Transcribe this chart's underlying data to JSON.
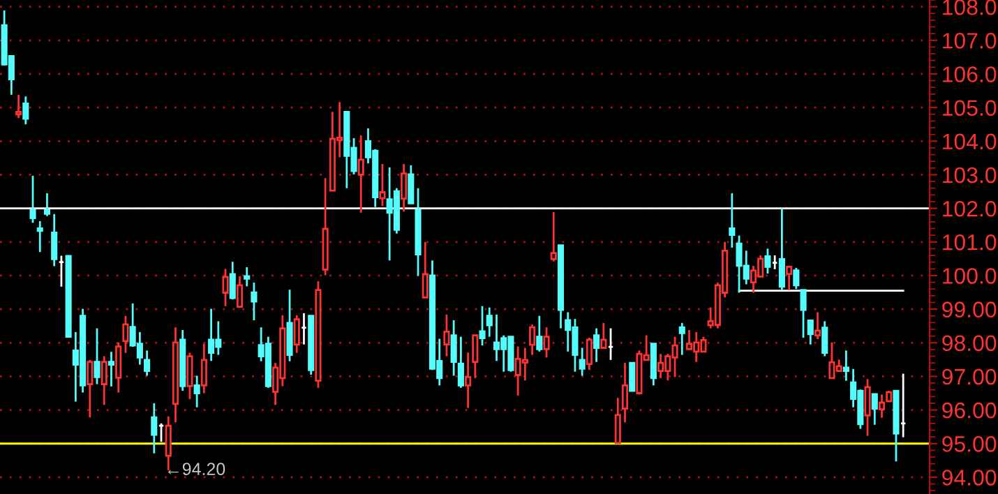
{
  "chart_data": {
    "type": "candlestick",
    "categories": [
      null,
      null,
      null,
      null,
      null,
      null,
      null,
      null,
      null,
      null,
      null,
      null,
      null,
      null,
      null,
      null,
      null,
      null,
      null,
      null,
      null,
      null,
      null,
      null,
      null,
      null,
      null,
      null,
      null,
      null,
      null,
      null,
      null,
      null,
      null,
      null,
      null,
      null,
      null,
      null,
      null,
      null,
      null,
      null,
      null,
      null,
      null,
      null,
      null,
      null,
      null,
      null,
      null,
      null,
      null,
      null,
      null,
      null,
      null,
      null,
      null,
      null,
      null,
      null,
      null,
      null,
      null,
      null,
      null,
      null,
      null,
      null,
      null,
      null,
      null,
      null,
      null,
      null,
      null,
      null,
      null,
      null,
      null,
      null,
      null,
      null,
      null,
      null,
      null,
      null,
      null,
      null,
      null,
      null,
      null,
      null,
      null,
      null,
      null,
      null,
      null,
      null,
      null,
      null,
      null,
      null,
      null,
      null,
      null,
      null,
      null,
      null,
      null,
      null,
      null,
      null,
      null,
      null,
      null,
      null,
      null,
      null,
      null,
      null,
      null,
      null,
      null
    ],
    "ohlc": [
      [
        107.45,
        107.89,
        106.25,
        106.28
      ],
      [
        106.53,
        106.53,
        105.38,
        105.84
      ],
      [
        104.8,
        105.38,
        104.69,
        104.87
      ],
      [
        105.12,
        105.33,
        104.5,
        104.67
      ],
      [
        101.94,
        102.97,
        101.57,
        101.71
      ],
      [
        101.4,
        101.62,
        100.7,
        101.33
      ],
      [
        101.94,
        102.45,
        101.77,
        101.84
      ],
      [
        101.28,
        101.83,
        100.28,
        100.49
      ],
      [
        100.4,
        100.59,
        99.67,
        100.4
      ],
      [
        100.58,
        100.58,
        98.15,
        98.18
      ],
      [
        97.77,
        98.32,
        96.25,
        97.35
      ],
      [
        98.8,
        99.01,
        96.52,
        96.73
      ],
      [
        96.77,
        97.49,
        95.78,
        97.43
      ],
      [
        97.43,
        98.43,
        96.77,
        96.98
      ],
      [
        96.77,
        97.6,
        96.15,
        97.43
      ],
      [
        97.43,
        97.73,
        96.7,
        97.35
      ],
      [
        96.96,
        98.01,
        96.52,
        97.89
      ],
      [
        98.05,
        98.8,
        97.7,
        98.55
      ],
      [
        98.47,
        99.17,
        97.88,
        97.92
      ],
      [
        97.97,
        98.32,
        97.35,
        97.56
      ],
      [
        97.49,
        97.77,
        97.02,
        97.16
      ],
      [
        95.78,
        96.2,
        94.71,
        95.26
      ],
      [
        95.53,
        95.6,
        95.05,
        95.53
      ],
      [
        94.64,
        95.81,
        94.2,
        95.53
      ],
      [
        96.18,
        98.46,
        95.63,
        98.01
      ],
      [
        98.09,
        98.38,
        96.57,
        96.71
      ],
      [
        96.71,
        97.7,
        96.32,
        97.6
      ],
      [
        96.73,
        97.02,
        96.08,
        96.5
      ],
      [
        96.73,
        97.97,
        96.5,
        97.49
      ],
      [
        98.09,
        99.01,
        97.46,
        97.7
      ],
      [
        98.09,
        98.64,
        97.64,
        97.88
      ],
      [
        99.49,
        100.2,
        99.09,
        99.96
      ],
      [
        100.04,
        100.41,
        99.29,
        99.33
      ],
      [
        99.07,
        99.98,
        99.07,
        99.71
      ],
      [
        99.98,
        100.25,
        99.68,
        99.91
      ],
      [
        99.5,
        99.79,
        98.67,
        99.23
      ],
      [
        97.93,
        98.46,
        97.45,
        97.6
      ],
      [
        97.97,
        98.18,
        96.66,
        96.71
      ],
      [
        96.54,
        97.4,
        96.15,
        97.26
      ],
      [
        96.95,
        98.82,
        96.71,
        98.43
      ],
      [
        98.59,
        99.58,
        97.45,
        97.64
      ],
      [
        97.95,
        98.82,
        97.7,
        98.7
      ],
      [
        98.45,
        98.88,
        97.95,
        98.45
      ],
      [
        98.8,
        98.8,
        97.05,
        97.19
      ],
      [
        96.87,
        99.83,
        96.66,
        99.57
      ],
      [
        100.18,
        102.9,
        100.01,
        101.39
      ],
      [
        102.53,
        104.87,
        102.53,
        104.07
      ],
      [
        104.03,
        105.16,
        103.52,
        104.1
      ],
      [
        104.87,
        104.87,
        102.6,
        103.56
      ],
      [
        103.8,
        104.09,
        103.01,
        103.11
      ],
      [
        103.0,
        104.17,
        101.87,
        103.45
      ],
      [
        104.0,
        104.38,
        103.34,
        103.52
      ],
      [
        103.71,
        103.76,
        102.04,
        102.33
      ],
      [
        102.3,
        103.32,
        102.07,
        102.48
      ],
      [
        102.27,
        103.22,
        100.45,
        101.87
      ],
      [
        102.51,
        102.6,
        101.25,
        101.36
      ],
      [
        102.29,
        103.32,
        101.91,
        103.04
      ],
      [
        103.01,
        103.28,
        102.15,
        102.15
      ],
      [
        101.94,
        102.6,
        99.99,
        100.63
      ],
      [
        99.35,
        101.0,
        99.35,
        100.04
      ],
      [
        100.0,
        100.45,
        97.19,
        97.23
      ],
      [
        97.46,
        98.12,
        96.73,
        96.95
      ],
      [
        97.95,
        98.84,
        97.6,
        98.33
      ],
      [
        98.22,
        98.67,
        97.02,
        97.43
      ],
      [
        97.38,
        98.18,
        96.66,
        96.73
      ],
      [
        96.73,
        97.71,
        96.06,
        96.98
      ],
      [
        97.43,
        98.22,
        96.95,
        98.22
      ],
      [
        98.34,
        99.09,
        97.92,
        98.14
      ],
      [
        98.8,
        99.05,
        98.18,
        98.52
      ],
      [
        98.01,
        98.84,
        97.46,
        97.81
      ],
      [
        98.14,
        98.22,
        97.14,
        97.81
      ],
      [
        98.18,
        98.18,
        97.14,
        97.19
      ],
      [
        97.04,
        97.89,
        96.43,
        97.52
      ],
      [
        97.41,
        97.85,
        96.88,
        97.49
      ],
      [
        97.94,
        98.54,
        97.64,
        98.46
      ],
      [
        98.18,
        98.8,
        97.74,
        97.81
      ],
      [
        97.81,
        98.46,
        97.56,
        98.18
      ],
      [
        100.49,
        101.89,
        100.42,
        100.67
      ],
      [
        100.9,
        100.9,
        98.43,
        98.98
      ],
      [
        98.67,
        98.91,
        97.74,
        98.38
      ],
      [
        98.46,
        98.71,
        97.14,
        97.64
      ],
      [
        97.49,
        97.85,
        97.02,
        97.23
      ],
      [
        97.37,
        98.15,
        97.19,
        98.09
      ],
      [
        98.22,
        98.43,
        97.43,
        97.85
      ],
      [
        97.85,
        98.59,
        97.85,
        98.09
      ],
      [
        97.88,
        98.43,
        97.49,
        97.88
      ],
      [
        95.02,
        96.36,
        95.02,
        95.85
      ],
      [
        96.04,
        97.4,
        95.63,
        96.73
      ],
      [
        97.4,
        97.4,
        96.57,
        96.57
      ],
      [
        96.5,
        97.77,
        96.46,
        97.67
      ],
      [
        97.49,
        98.22,
        97.49,
        97.63
      ],
      [
        97.97,
        97.97,
        96.73,
        96.95
      ],
      [
        97.16,
        97.67,
        96.95,
        97.4
      ],
      [
        97.16,
        97.67,
        96.88,
        97.6
      ],
      [
        97.56,
        98.18,
        96.98,
        97.92
      ],
      [
        98.46,
        98.59,
        97.64,
        98.29
      ],
      [
        97.81,
        98.38,
        97.81,
        97.97
      ],
      [
        97.74,
        98.32,
        97.43,
        98.01
      ],
      [
        97.74,
        98.18,
        97.74,
        98.08
      ],
      [
        98.52,
        99.05,
        98.43,
        98.64
      ],
      [
        98.53,
        99.79,
        98.43,
        99.71
      ],
      [
        99.49,
        101.0,
        99.35,
        100.74
      ],
      [
        101.4,
        102.45,
        100.83,
        101.21
      ],
      [
        100.95,
        101.19,
        99.49,
        100.29
      ],
      [
        100.29,
        100.74,
        99.74,
        99.91
      ],
      [
        99.8,
        100.29,
        99.49,
        100.15
      ],
      [
        99.97,
        100.6,
        99.97,
        100.5
      ],
      [
        100.57,
        100.8,
        100.06,
        100.26
      ],
      [
        100.38,
        100.6,
        100.19,
        100.38
      ],
      [
        100.49,
        102.0,
        99.57,
        99.67
      ],
      [
        100.05,
        100.29,
        99.57,
        100.26
      ],
      [
        100.15,
        100.23,
        99.6,
        99.71
      ],
      [
        99.57,
        99.57,
        98.15,
        98.98
      ],
      [
        98.66,
        98.66,
        97.95,
        98.26
      ],
      [
        98.22,
        98.91,
        98.11,
        98.36
      ],
      [
        98.45,
        98.64,
        97.6,
        97.7
      ],
      [
        96.95,
        98.01,
        96.95,
        97.42
      ],
      [
        97.16,
        97.5,
        97.16,
        97.3
      ],
      [
        97.26,
        97.77,
        96.87,
        97.16
      ],
      [
        96.82,
        97.22,
        96.08,
        96.33
      ],
      [
        96.57,
        96.61,
        95.44,
        95.58
      ],
      [
        95.84,
        96.92,
        95.23,
        96.68
      ],
      [
        96.47,
        96.47,
        95.56,
        96.04
      ],
      [
        96.02,
        96.46,
        95.77,
        96.22
      ],
      [
        96.26,
        96.57,
        96.26,
        96.53
      ],
      [
        96.57,
        96.57,
        94.47,
        95.3
      ],
      [
        95.6,
        97.08,
        95.19,
        95.6
      ]
    ],
    "colors": [
      "#54fcfc",
      "#54fcfc",
      "#ff3232",
      "#54fcfc",
      "#54fcfc",
      "#54fcfc",
      "#54fcfc",
      "#54fcfc",
      "#ffffff",
      "#54fcfc",
      "#54fcfc",
      "#54fcfc",
      "#ff3232",
      "#54fcfc",
      "#ff3232",
      "#54fcfc",
      "#ff3232",
      "#ff3232",
      "#54fcfc",
      "#54fcfc",
      "#54fcfc",
      "#54fcfc",
      "#ffffff",
      "#ff3232",
      "#ff3232",
      "#54fcfc",
      "#ff3232",
      "#54fcfc",
      "#ff3232",
      "#54fcfc",
      "#54fcfc",
      "#ff3232",
      "#54fcfc",
      "#ff3232",
      "#54fcfc",
      "#54fcfc",
      "#54fcfc",
      "#54fcfc",
      "#ff3232",
      "#ff3232",
      "#54fcfc",
      "#ff3232",
      "#ffffff",
      "#54fcfc",
      "#ff3232",
      "#ff3232",
      "#ff3232",
      "#ff3232",
      "#54fcfc",
      "#54fcfc",
      "#ff3232",
      "#54fcfc",
      "#54fcfc",
      "#ff3232",
      "#54fcfc",
      "#54fcfc",
      "#ff3232",
      "#54fcfc",
      "#54fcfc",
      "#ff3232",
      "#54fcfc",
      "#54fcfc",
      "#ff3232",
      "#54fcfc",
      "#54fcfc",
      "#ff3232",
      "#ff3232",
      "#54fcfc",
      "#54fcfc",
      "#54fcfc",
      "#54fcfc",
      "#54fcfc",
      "#ff3232",
      "#ff3232",
      "#ff3232",
      "#54fcfc",
      "#ff3232",
      "#ff3232",
      "#54fcfc",
      "#54fcfc",
      "#54fcfc",
      "#54fcfc",
      "#ff3232",
      "#54fcfc",
      "#ff3232",
      "#ffffff",
      "#ff3232",
      "#ff3232",
      "#54fcfc",
      "#ff3232",
      "#ff3232",
      "#54fcfc",
      "#ff3232",
      "#ff3232",
      "#ff3232",
      "#54fcfc",
      "#ff3232",
      "#ff3232",
      "#ff3232",
      "#ff3232",
      "#ff3232",
      "#ff3232",
      "#54fcfc",
      "#54fcfc",
      "#54fcfc",
      "#ff3232",
      "#ff3232",
      "#54fcfc",
      "#ffffff",
      "#54fcfc",
      "#ff3232",
      "#54fcfc",
      "#54fcfc",
      "#54fcfc",
      "#ff3232",
      "#54fcfc",
      "#ff3232",
      "#ff3232",
      "#54fcfc",
      "#54fcfc",
      "#54fcfc",
      "#ff3232",
      "#54fcfc",
      "#ff3232",
      "#ff3232",
      "#54fcfc",
      "#ffffff"
    ],
    "series": [
      {
        "type": "line",
        "values": [
          null,
          null,
          null,
          null,
          null,
          null,
          null,
          null,
          null,
          null,
          null,
          null,
          null,
          null,
          null,
          null,
          null,
          null,
          null,
          null,
          null,
          null,
          null,
          null,
          null,
          null,
          null,
          null,
          null,
          null,
          null,
          null,
          null,
          null,
          null,
          null,
          null,
          null,
          null,
          null,
          null,
          null,
          null,
          null,
          null,
          null,
          null,
          null,
          null,
          null,
          null,
          null,
          null,
          null,
          null,
          null,
          null,
          null,
          null,
          null,
          null,
          null,
          null,
          null,
          null,
          null,
          null,
          null,
          null,
          null,
          null,
          null,
          null,
          null,
          null,
          null,
          null,
          null,
          null,
          null,
          null,
          null,
          null,
          null,
          null,
          null,
          null,
          null,
          null,
          null,
          null,
          null,
          null,
          null,
          null,
          null,
          null,
          null,
          null,
          null,
          null,
          null,
          null,
          99.55,
          99.55,
          99.55,
          99.55,
          99.55,
          99.55,
          99.55,
          99.55,
          99.55,
          99.55,
          99.55,
          99.55,
          99.55,
          99.55,
          99.55,
          99.55,
          99.55,
          99.55,
          99.55,
          99.55,
          99.55,
          99.55,
          99.55,
          99.55
        ],
        "color": "#ffffff"
      }
    ],
    "ref_lines": [
      {
        "axis": "y",
        "value": 102,
        "color": "#ffffff"
      },
      {
        "axis": "y",
        "value": 95,
        "color": "#ffff00"
      }
    ],
    "annotations": [
      "←94.20"
    ],
    "ylim": [
      93.5,
      108.2
    ],
    "yticks": [
      {
        "value": 94,
        "label": "94.00"
      },
      {
        "value": 95,
        "label": "95.00"
      },
      {
        "value": 96,
        "label": "96.00"
      },
      {
        "value": 97,
        "label": "97.00"
      },
      {
        "value": 98,
        "label": "98.00"
      },
      {
        "value": 99,
        "label": "99.00"
      },
      {
        "value": 100,
        "label": "100.0"
      },
      {
        "value": 101,
        "label": "101.0"
      },
      {
        "value": 102,
        "label": "102.0"
      },
      {
        "value": 103,
        "label": "103.0"
      },
      {
        "value": 104,
        "label": "104.0"
      },
      {
        "value": 105,
        "label": "105.0"
      },
      {
        "value": 106,
        "label": "106.0"
      },
      {
        "value": 107,
        "label": "107.0"
      },
      {
        "value": 108,
        "label": "108.0"
      }
    ],
    "tick_labels": "y",
    "grid": "y"
  }
}
